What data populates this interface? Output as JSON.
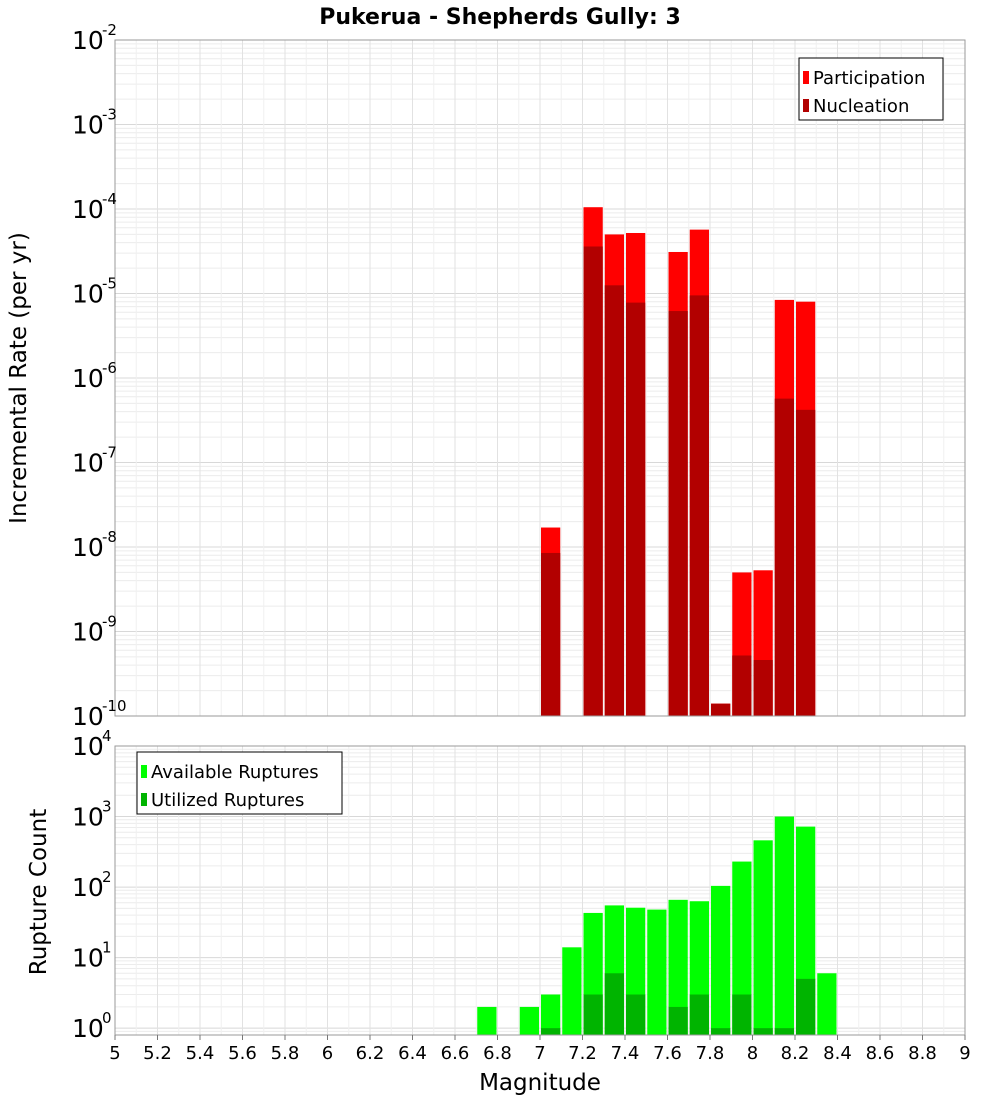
{
  "chart_data": [
    {
      "type": "bar",
      "title": "Pukerua - Shepherds Gully: 3",
      "xlabel": "Magnitude",
      "ylabel": "Incremental Rate (per yr)",
      "yscale": "log",
      "ylim": [
        1e-10,
        0.01
      ],
      "xlim": [
        5,
        9
      ],
      "grid": true,
      "legend_position": "top-right",
      "series": [
        {
          "name": "Participation",
          "color": "#ff0000",
          "x": [
            7.05,
            7.25,
            7.35,
            7.45,
            7.65,
            7.75,
            7.85,
            7.95,
            8.05,
            8.15,
            8.25
          ],
          "values": [
            1.7e-08,
            0.000105,
            5e-05,
            5.2e-05,
            3.1e-05,
            5.7e-05,
            1.4e-10,
            5e-09,
            5.3e-09,
            8.4e-06,
            8e-06
          ]
        },
        {
          "name": "Nucleation",
          "color": "#b20000",
          "x": [
            7.05,
            7.25,
            7.35,
            7.45,
            7.65,
            7.75,
            7.85,
            7.95,
            8.05,
            8.15,
            8.25
          ],
          "values": [
            8.5e-09,
            3.6e-05,
            1.25e-05,
            7.8e-06,
            6.2e-06,
            9.5e-06,
            1.4e-10,
            5.2e-10,
            4.6e-10,
            5.7e-07,
            4.2e-07
          ]
        }
      ]
    },
    {
      "type": "bar",
      "title": "",
      "xlabel": "Magnitude",
      "ylabel": "Rupture Count",
      "yscale": "log",
      "ylim": [
        0.8,
        10000
      ],
      "xlim": [
        5,
        9
      ],
      "grid": true,
      "legend_position": "top-left",
      "x_ticks": [
        "5",
        "5.2",
        "5.4",
        "5.6",
        "5.8",
        "6",
        "6.2",
        "6.4",
        "6.6",
        "6.8",
        "7",
        "7.2",
        "7.4",
        "7.6",
        "7.8",
        "8",
        "8.2",
        "8.4",
        "8.6",
        "8.8",
        "9"
      ],
      "series": [
        {
          "name": "Available Ruptures",
          "color": "#00ff00",
          "x": [
            6.75,
            6.95,
            7.05,
            7.15,
            7.25,
            7.35,
            7.45,
            7.55,
            7.65,
            7.75,
            7.85,
            7.95,
            8.05,
            8.15,
            8.25,
            8.35
          ],
          "values": [
            2,
            2,
            3,
            14,
            43,
            55,
            51,
            48,
            66,
            63,
            104,
            230,
            460,
            1000,
            720,
            6
          ]
        },
        {
          "name": "Utilized Ruptures",
          "color": "#00b400",
          "x": [
            7.05,
            7.25,
            7.35,
            7.45,
            7.65,
            7.75,
            7.85,
            7.95,
            8.05,
            8.15,
            8.25
          ],
          "values": [
            1,
            3,
            6,
            3,
            2,
            3,
            1,
            3,
            1,
            1,
            5
          ]
        }
      ]
    }
  ]
}
